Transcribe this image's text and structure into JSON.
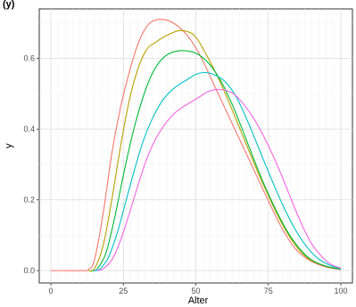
{
  "title_fragment": "(y)",
  "chart_data": {
    "type": "line",
    "title": "",
    "xlabel": "Alter",
    "ylabel": "y",
    "xlim": [
      -4,
      104
    ],
    "ylim": [
      -0.035,
      0.74
    ],
    "x_ticks": [
      0,
      25,
      50,
      75,
      100
    ],
    "y_ticks": [
      0.0,
      0.2,
      0.4,
      0.6
    ],
    "grid": true,
    "legend": "none",
    "series": [
      {
        "color": "#F8766D",
        "points": [
          [
            0,
            0
          ],
          [
            10,
            0
          ],
          [
            13,
            0.003
          ],
          [
            15,
            0.03
          ],
          [
            18,
            0.16
          ],
          [
            21,
            0.33
          ],
          [
            24,
            0.46
          ],
          [
            27,
            0.56
          ],
          [
            30,
            0.64
          ],
          [
            33,
            0.69
          ],
          [
            36,
            0.708
          ],
          [
            40,
            0.708
          ],
          [
            44,
            0.69
          ],
          [
            48,
            0.655
          ],
          [
            52,
            0.6
          ],
          [
            56,
            0.53
          ],
          [
            60,
            0.46
          ],
          [
            64,
            0.39
          ],
          [
            68,
            0.32
          ],
          [
            72,
            0.25
          ],
          [
            76,
            0.18
          ],
          [
            80,
            0.115
          ],
          [
            84,
            0.065
          ],
          [
            88,
            0.035
          ],
          [
            92,
            0.018
          ],
          [
            96,
            0.008
          ],
          [
            100,
            0.003
          ]
        ]
      },
      {
        "color": "#B79F00",
        "points": [
          [
            13,
            0
          ],
          [
            15,
            0.005
          ],
          [
            18,
            0.07
          ],
          [
            21,
            0.2
          ],
          [
            24,
            0.35
          ],
          [
            27,
            0.48
          ],
          [
            30,
            0.57
          ],
          [
            33,
            0.625
          ],
          [
            36,
            0.645
          ],
          [
            40,
            0.665
          ],
          [
            44,
            0.678
          ],
          [
            47,
            0.676
          ],
          [
            50,
            0.66
          ],
          [
            54,
            0.605
          ],
          [
            58,
            0.54
          ],
          [
            62,
            0.465
          ],
          [
            66,
            0.385
          ],
          [
            70,
            0.305
          ],
          [
            74,
            0.23
          ],
          [
            78,
            0.16
          ],
          [
            82,
            0.1
          ],
          [
            86,
            0.055
          ],
          [
            90,
            0.028
          ],
          [
            95,
            0.012
          ],
          [
            100,
            0.004
          ]
        ]
      },
      {
        "color": "#00BA38",
        "points": [
          [
            14,
            0
          ],
          [
            16,
            0.005
          ],
          [
            19,
            0.05
          ],
          [
            22,
            0.15
          ],
          [
            25,
            0.27
          ],
          [
            28,
            0.38
          ],
          [
            31,
            0.47
          ],
          [
            34,
            0.54
          ],
          [
            37,
            0.585
          ],
          [
            40,
            0.61
          ],
          [
            43,
            0.62
          ],
          [
            46,
            0.622
          ],
          [
            50,
            0.615
          ],
          [
            54,
            0.59
          ],
          [
            58,
            0.545
          ],
          [
            62,
            0.48
          ],
          [
            66,
            0.4
          ],
          [
            70,
            0.315
          ],
          [
            74,
            0.235
          ],
          [
            78,
            0.165
          ],
          [
            82,
            0.105
          ],
          [
            86,
            0.06
          ],
          [
            90,
            0.03
          ],
          [
            95,
            0.012
          ],
          [
            100,
            0.004
          ]
        ]
      },
      {
        "color": "#00BFC4",
        "points": [
          [
            15,
            0
          ],
          [
            17,
            0.005
          ],
          [
            20,
            0.04
          ],
          [
            23,
            0.11
          ],
          [
            26,
            0.2
          ],
          [
            29,
            0.29
          ],
          [
            32,
            0.37
          ],
          [
            35,
            0.43
          ],
          [
            38,
            0.475
          ],
          [
            41,
            0.505
          ],
          [
            44,
            0.525
          ],
          [
            47,
            0.54
          ],
          [
            50,
            0.555
          ],
          [
            53,
            0.56
          ],
          [
            56,
            0.555
          ],
          [
            60,
            0.535
          ],
          [
            64,
            0.49
          ],
          [
            68,
            0.42
          ],
          [
            72,
            0.34
          ],
          [
            76,
            0.26
          ],
          [
            80,
            0.185
          ],
          [
            84,
            0.12
          ],
          [
            88,
            0.07
          ],
          [
            92,
            0.035
          ],
          [
            96,
            0.016
          ],
          [
            100,
            0.005
          ]
        ]
      },
      {
        "color": "#619CFF",
        "points": [
          [
            15,
            0
          ],
          [
            16,
            0.003
          ]
        ]
      },
      {
        "color": "#F564E3",
        "points": [
          [
            16,
            0
          ],
          [
            18,
            0.005
          ],
          [
            21,
            0.03
          ],
          [
            24,
            0.085
          ],
          [
            27,
            0.16
          ],
          [
            30,
            0.24
          ],
          [
            33,
            0.315
          ],
          [
            36,
            0.37
          ],
          [
            39,
            0.41
          ],
          [
            42,
            0.44
          ],
          [
            45,
            0.46
          ],
          [
            48,
            0.475
          ],
          [
            51,
            0.49
          ],
          [
            54,
            0.505
          ],
          [
            57,
            0.512
          ],
          [
            60,
            0.51
          ],
          [
            63,
            0.5
          ],
          [
            66,
            0.475
          ],
          [
            70,
            0.43
          ],
          [
            74,
            0.37
          ],
          [
            78,
            0.3
          ],
          [
            82,
            0.22
          ],
          [
            86,
            0.14
          ],
          [
            90,
            0.075
          ],
          [
            94,
            0.035
          ],
          [
            97,
            0.016
          ],
          [
            100,
            0.007
          ]
        ]
      }
    ]
  }
}
